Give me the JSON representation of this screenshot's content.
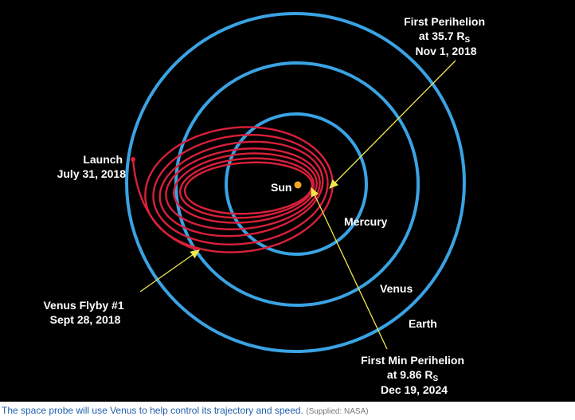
{
  "diagram": {
    "labels": {
      "first_perihelion": {
        "line1": "First Perihelion",
        "line2": "at 35.7 R",
        "line2_sub": "S",
        "line3": "Nov 1, 2018"
      },
      "launch": {
        "line1": "Launch",
        "line2": "July 31, 2018"
      },
      "sun": "Sun",
      "mercury": "Mercury",
      "venus": "Venus",
      "earth": "Earth",
      "venus_flyby": {
        "line1": "Venus Flyby #1",
        "line2": "Sept 28, 2018"
      },
      "first_min_perihelion": {
        "line1": "First Min Perihelion",
        "line2": "at 9.86 R",
        "line2_sub": "S",
        "line3": "Dec 19, 2024"
      }
    }
  },
  "caption": {
    "text": "The space probe will use Venus to help control its trajectory and speed.",
    "credit": "(Supplied: NASA)"
  }
}
